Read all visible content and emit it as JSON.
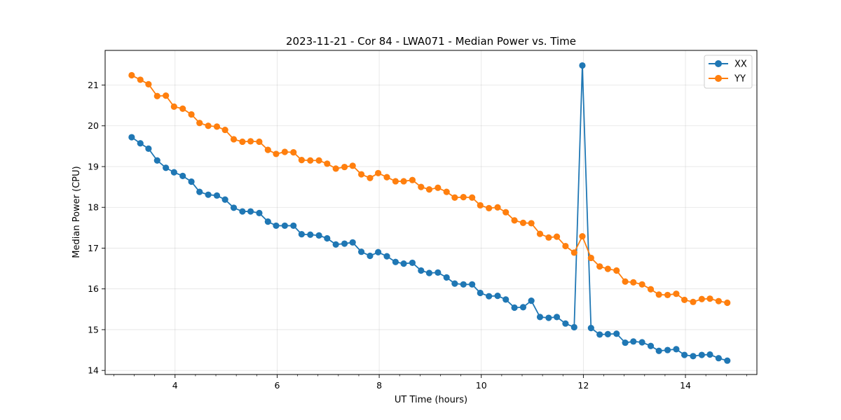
{
  "chart_data": {
    "type": "line",
    "title": "2023-11-21 - Cor 84 - LWA071 - Median Power vs. Time",
    "xlabel": "UT Time (hours)",
    "ylabel": "Median Power (CPU)",
    "xlim": [
      2.63,
      15.4
    ],
    "ylim": [
      13.9,
      21.85
    ],
    "xticks": [
      4,
      6,
      8,
      10,
      12,
      14
    ],
    "xtick_labels": [
      "4",
      "6",
      "8",
      "10",
      "12",
      "14"
    ],
    "yticks": [
      14,
      15,
      16,
      17,
      18,
      19,
      20,
      21
    ],
    "ytick_labels": [
      "14",
      "15",
      "16",
      "17",
      "18",
      "19",
      "20",
      "21"
    ],
    "grid": true,
    "legend_position": "top-right",
    "x": [
      3.15,
      3.32,
      3.48,
      3.65,
      3.82,
      3.98,
      4.15,
      4.32,
      4.48,
      4.65,
      4.82,
      4.98,
      5.15,
      5.32,
      5.48,
      5.65,
      5.82,
      5.98,
      6.15,
      6.32,
      6.48,
      6.65,
      6.82,
      6.98,
      7.15,
      7.32,
      7.48,
      7.65,
      7.82,
      7.98,
      8.15,
      8.32,
      8.48,
      8.65,
      8.82,
      8.98,
      9.15,
      9.32,
      9.48,
      9.65,
      9.82,
      9.98,
      10.15,
      10.32,
      10.48,
      10.65,
      10.82,
      10.98,
      11.15,
      11.32,
      11.48,
      11.65,
      11.82,
      11.98,
      12.15,
      12.32,
      12.48,
      12.65,
      12.82,
      12.98,
      13.15,
      13.32,
      13.48,
      13.65,
      13.82,
      13.98,
      14.15,
      14.32,
      14.48,
      14.65,
      14.82
    ],
    "series": [
      {
        "name": "XX",
        "color": "#1f77b4",
        "values": [
          19.72,
          19.57,
          19.44,
          19.15,
          18.97,
          18.86,
          18.77,
          18.63,
          18.38,
          18.31,
          18.29,
          18.19,
          17.99,
          17.9,
          17.9,
          17.86,
          17.65,
          17.55,
          17.55,
          17.55,
          17.34,
          17.33,
          17.31,
          17.24,
          17.09,
          17.11,
          17.14,
          16.91,
          16.81,
          16.9,
          16.8,
          16.66,
          16.62,
          16.64,
          16.45,
          16.39,
          16.4,
          16.28,
          16.13,
          16.11,
          16.11,
          15.9,
          15.82,
          15.83,
          15.74,
          15.54,
          15.55,
          15.71,
          15.31,
          15.29,
          15.31,
          15.15,
          15.06,
          21.48,
          15.04,
          14.88,
          14.89,
          14.9,
          14.68,
          14.71,
          14.69,
          14.6,
          14.48,
          14.5,
          14.52,
          14.38,
          14.35,
          14.38,
          14.39,
          14.3,
          14.24
        ]
      },
      {
        "name": "YY",
        "color": "#ff7f0e",
        "values": [
          21.24,
          21.13,
          21.02,
          20.73,
          20.74,
          20.47,
          20.42,
          20.28,
          20.07,
          20.0,
          19.98,
          19.9,
          19.67,
          19.61,
          19.62,
          19.61,
          19.41,
          19.31,
          19.36,
          19.35,
          19.16,
          19.15,
          19.15,
          19.07,
          18.95,
          18.99,
          19.02,
          18.81,
          18.72,
          18.84,
          18.74,
          18.64,
          18.64,
          18.67,
          18.5,
          18.44,
          18.48,
          18.38,
          18.24,
          18.25,
          18.24,
          18.05,
          17.98,
          18.0,
          17.88,
          17.68,
          17.62,
          17.61,
          17.35,
          17.26,
          17.28,
          17.05,
          16.89,
          17.29,
          16.76,
          16.55,
          16.49,
          16.45,
          16.18,
          16.16,
          16.11,
          15.99,
          15.86,
          15.85,
          15.88,
          15.73,
          15.68,
          15.75,
          15.76,
          15.7,
          15.66
        ]
      }
    ]
  }
}
